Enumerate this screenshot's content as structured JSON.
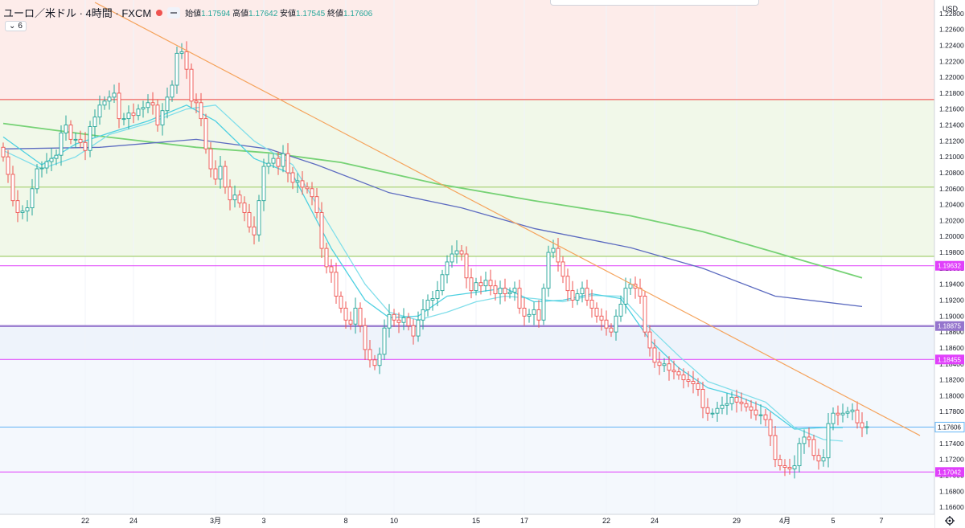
{
  "legend": {
    "symbol": "ユーロ／米ドル · 4時間 · FXCM",
    "open_label": "始値",
    "open": "1.17594",
    "high_label": "高値",
    "high": "1.17642",
    "low_label": "安値",
    "low": "1.17545",
    "close_label": "終値",
    "close": "1.17606"
  },
  "indicator_toggle": {
    "icon": "chevron-down-icon",
    "count": "6"
  },
  "currency_label": "USD",
  "settings_icon": "gear-icon",
  "colors": {
    "up": "#26a69a",
    "down": "#ef5350",
    "ma_fast": "#4dd0e1",
    "ma_mid": "#80deea",
    "ma_purple": "#5c6bc0",
    "ma_green": "#76d275",
    "trendline": "#f5a35c",
    "level_red": "#ef5350",
    "level_green": "#9ccc65",
    "level_magenta": "#e040fb",
    "level_purple": "#9575cd",
    "level_blue": "#64b5f6"
  },
  "chart_data": {
    "type": "candlestick",
    "ylim": [
      1.1651,
      1.2297
    ],
    "y_ticks": [
      "1.22800",
      "1.22600",
      "1.22400",
      "1.22200",
      "1.22000",
      "1.21800",
      "1.21600",
      "1.21400",
      "1.21200",
      "1.21000",
      "1.20800",
      "1.20600",
      "1.20400",
      "1.20200",
      "1.20000",
      "1.19800",
      "1.19600",
      "1.19400",
      "1.19200",
      "1.19000",
      "1.18800",
      "1.18600",
      "1.18400",
      "1.18200",
      "1.18000",
      "1.17800",
      "1.17600",
      "1.17400",
      "1.17200",
      "1.17000",
      "1.16800",
      "1.16600"
    ],
    "x_ticks": [
      {
        "label": "22",
        "bar": 17
      },
      {
        "label": "24",
        "bar": 27
      },
      {
        "label": "3月",
        "bar": 44
      },
      {
        "label": "3",
        "bar": 54
      },
      {
        "label": "8",
        "bar": 71
      },
      {
        "label": "10",
        "bar": 81
      },
      {
        "label": "15",
        "bar": 98
      },
      {
        "label": "17",
        "bar": 108
      },
      {
        "label": "22",
        "bar": 125
      },
      {
        "label": "24",
        "bar": 135
      },
      {
        "label": "29",
        "bar": 152
      },
      {
        "label": "4月",
        "bar": 162
      },
      {
        "label": "5",
        "bar": 172
      },
      {
        "label": "7",
        "bar": 182
      }
    ],
    "bar_count": 188,
    "price_levels": [
      {
        "value": 1.2172,
        "color": "level_red",
        "label": ""
      },
      {
        "value": 1.2062,
        "color": "level_green",
        "label": ""
      },
      {
        "value": 1.1975,
        "color": "level_green",
        "label": ""
      },
      {
        "value": 1.19632,
        "color": "level_magenta",
        "label": "1.19632"
      },
      {
        "value": 1.18875,
        "color": "level_purple",
        "label": "1.18875"
      },
      {
        "value": 1.18455,
        "color": "level_magenta",
        "label": "1.18455"
      },
      {
        "value": 1.17606,
        "color": "level_blue",
        "label": "1.17606"
      },
      {
        "value": 1.17042,
        "color": "level_magenta",
        "label": "1.17042"
      }
    ],
    "zones": [
      {
        "from": 1.2297,
        "to": 1.2172,
        "color": "#fdecea"
      },
      {
        "from": 1.2172,
        "to": 1.1975,
        "color": "#f1f8e9"
      },
      {
        "from": 1.18875,
        "to": 1.18455,
        "color": "#eef3fb"
      },
      {
        "from": 1.18455,
        "to": 1.1651,
        "color": "#f4f8fd"
      }
    ],
    "trendline": {
      "from": [
        19,
        1.2294
      ],
      "to": [
        190,
        1.175
      ]
    },
    "ma_purple": [
      [
        0,
        1.211
      ],
      [
        20,
        1.2112
      ],
      [
        40,
        1.2122
      ],
      [
        55,
        1.211
      ],
      [
        65,
        1.209
      ],
      [
        80,
        1.2055
      ],
      [
        95,
        1.2036
      ],
      [
        110,
        1.201
      ],
      [
        130,
        1.1986
      ],
      [
        145,
        1.196
      ],
      [
        160,
        1.1925
      ],
      [
        178,
        1.1912
      ]
    ],
    "ma_green": [
      [
        0,
        1.2142
      ],
      [
        20,
        1.2126
      ],
      [
        40,
        1.2112
      ],
      [
        55,
        1.2105
      ],
      [
        70,
        1.2093
      ],
      [
        90,
        1.2066
      ],
      [
        110,
        1.2045
      ],
      [
        130,
        1.2026
      ],
      [
        145,
        1.2006
      ],
      [
        160,
        1.198
      ],
      [
        178,
        1.1948
      ]
    ],
    "ma_fast": [
      [
        0,
        1.2125
      ],
      [
        8,
        1.209
      ],
      [
        15,
        1.2116
      ],
      [
        22,
        1.213
      ],
      [
        30,
        1.2145
      ],
      [
        38,
        1.2165
      ],
      [
        44,
        1.2145
      ],
      [
        52,
        1.2098
      ],
      [
        60,
        1.2078
      ],
      [
        68,
        1.1985
      ],
      [
        75,
        1.192
      ],
      [
        80,
        1.1898
      ],
      [
        86,
        1.19
      ],
      [
        92,
        1.1925
      ],
      [
        98,
        1.193
      ],
      [
        104,
        1.1935
      ],
      [
        110,
        1.1918
      ],
      [
        116,
        1.192
      ],
      [
        122,
        1.1928
      ],
      [
        128,
        1.1922
      ],
      [
        134,
        1.187
      ],
      [
        140,
        1.1835
      ],
      [
        146,
        1.181
      ],
      [
        152,
        1.18
      ],
      [
        158,
        1.1785
      ],
      [
        164,
        1.1758
      ],
      [
        170,
        1.176
      ],
      [
        174,
        1.176
      ]
    ],
    "ma_mid": [
      [
        0,
        1.2108
      ],
      [
        8,
        1.2085
      ],
      [
        15,
        1.21
      ],
      [
        22,
        1.2128
      ],
      [
        30,
        1.2142
      ],
      [
        38,
        1.216
      ],
      [
        44,
        1.2165
      ],
      [
        52,
        1.212
      ],
      [
        60,
        1.209
      ],
      [
        68,
        1.201
      ],
      [
        75,
        1.194
      ],
      [
        80,
        1.1905
      ],
      [
        86,
        1.1895
      ],
      [
        92,
        1.1905
      ],
      [
        98,
        1.1918
      ],
      [
        104,
        1.1925
      ],
      [
        110,
        1.1922
      ],
      [
        116,
        1.1918
      ],
      [
        122,
        1.1926
      ],
      [
        128,
        1.1925
      ],
      [
        134,
        1.1885
      ],
      [
        140,
        1.185
      ],
      [
        146,
        1.1818
      ],
      [
        152,
        1.1805
      ],
      [
        158,
        1.1792
      ],
      [
        164,
        1.176
      ],
      [
        170,
        1.1745
      ],
      [
        174,
        1.1743
      ]
    ],
    "closes": [
      1.21,
      1.2078,
      1.2045,
      1.203,
      1.2032,
      1.2036,
      1.206,
      1.2085,
      1.2086,
      1.2094,
      1.2098,
      1.2102,
      1.213,
      1.214,
      1.2122,
      1.2122,
      1.2118,
      1.2108,
      1.2138,
      1.215,
      1.2165,
      1.217,
      1.2175,
      1.218,
      1.2148,
      1.2148,
      1.2155,
      1.2152,
      1.216,
      1.2162,
      1.2168,
      1.2165,
      1.214,
      1.2158,
      1.2175,
      1.219,
      1.223,
      1.2232,
      1.221,
      1.217,
      1.2168,
      1.2148,
      1.211,
      1.2085,
      1.2072,
      1.2088,
      1.2062,
      1.2046,
      1.2052,
      1.2042,
      1.203,
      1.2012,
      1.2002,
      1.2045,
      1.2088,
      1.2092,
      1.2098,
      1.2088,
      1.2104,
      1.208,
      1.2068,
      1.207,
      1.2062,
      1.206,
      1.205,
      1.203,
      1.1985,
      1.1962,
      1.1955,
      1.1925,
      1.191,
      1.1895,
      1.189,
      1.191,
      1.1888,
      1.1858,
      1.1845,
      1.1838,
      1.1852,
      1.1885,
      1.1902,
      1.1895,
      1.1892,
      1.1898,
      1.1888,
      1.1875,
      1.1895,
      1.1908,
      1.192,
      1.1922,
      1.1932,
      1.1952,
      1.1968,
      1.1978,
      1.1982,
      1.1978,
      1.1948,
      1.1932,
      1.1942,
      1.1938,
      1.1945,
      1.1938,
      1.1928,
      1.1935,
      1.1928,
      1.193,
      1.1935,
      1.191,
      1.19,
      1.1902,
      1.1908,
      1.1895,
      1.1935,
      1.198,
      1.1985,
      1.1968,
      1.195,
      1.1932,
      1.192,
      1.1928,
      1.1935,
      1.192,
      1.191,
      1.19,
      1.1895,
      1.1885,
      1.188,
      1.19,
      1.1915,
      1.1935,
      1.194,
      1.1935,
      1.1925,
      1.188,
      1.186,
      1.1842,
      1.1838,
      1.184,
      1.1832,
      1.183,
      1.1826,
      1.182,
      1.1818,
      1.1815,
      1.1808,
      1.1785,
      1.1778,
      1.1778,
      1.1784,
      1.1788,
      1.179,
      1.1798,
      1.1792,
      1.179,
      1.1786,
      1.1782,
      1.1776,
      1.1776,
      1.177,
      1.175,
      1.172,
      1.1712,
      1.171,
      1.1708,
      1.1712,
      1.174,
      1.1748,
      1.1745,
      1.1725,
      1.1718,
      1.1722,
      1.1765,
      1.1778,
      1.1776,
      1.1778,
      1.178,
      1.1782,
      1.1766,
      1.176,
      1.1761
    ]
  }
}
